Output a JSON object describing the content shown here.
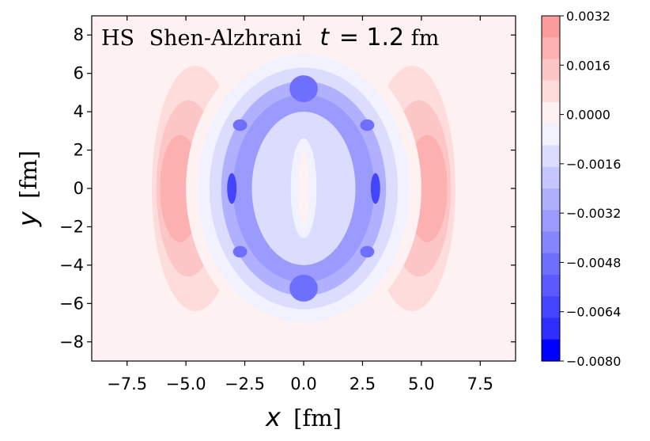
{
  "chart_data": {
    "type": "contour",
    "title_parts": {
      "model": "HS",
      "eos": "Shen-Alzhrani",
      "time_var": "t",
      "time_value": "= 1.2",
      "time_unit": "fm"
    },
    "xlabel": {
      "var": "x",
      "unit": "[fm]"
    },
    "ylabel": {
      "var": "y",
      "unit": "[fm]"
    },
    "xlim": [
      -9,
      9
    ],
    "ylim": [
      -9,
      9
    ],
    "xticks": [
      -7.5,
      -5.0,
      -2.5,
      0.0,
      2.5,
      5.0,
      7.5
    ],
    "xtick_labels": [
      "−7.5",
      "−5.0",
      "−2.5",
      "0.0",
      "2.5",
      "5.0",
      "7.5"
    ],
    "yticks": [
      -8,
      -6,
      -4,
      -2,
      0,
      2,
      4,
      6,
      8
    ],
    "ytick_labels": [
      "−8",
      "−6",
      "−4",
      "−2",
      "0",
      "2",
      "4",
      "6",
      "8"
    ],
    "colorbar": {
      "range": [
        -0.008,
        0.0032
      ],
      "ticks": [
        0.0032,
        0.0016,
        0.0,
        -0.0016,
        -0.0032,
        -0.0048,
        -0.0064,
        -0.008
      ],
      "tick_labels": [
        "0.0032",
        "0.0016",
        "0.0000",
        "−0.0016",
        "−0.0032",
        "−0.0048",
        "−0.0064",
        "−0.0080"
      ],
      "level_colors": [
        "#fc9b9b",
        "#fdb0b0",
        "#fdc6c6",
        "#fedcdc",
        "#fef1f1",
        "#f2f2fe",
        "#dcdcfe",
        "#c6c6fe",
        "#b0b0fe",
        "#9b9bfe",
        "#8585fe",
        "#6f6ffe",
        "#5a5afe",
        "#4444fe",
        "#2e2efe",
        "#0000ff"
      ]
    },
    "background_level": 0.0,
    "regions": [
      {
        "level": 0.0008,
        "cx": -4.6,
        "cy": 0,
        "rx": 1.85,
        "ry": 6.4
      },
      {
        "level": 0.0008,
        "cx": 4.6,
        "cy": 0,
        "rx": 1.85,
        "ry": 6.4
      },
      {
        "level": 0.0016,
        "cx": -4.9,
        "cy": 0,
        "rx": 1.35,
        "ry": 4.6
      },
      {
        "level": 0.0016,
        "cx": 4.9,
        "cy": 0,
        "rx": 1.35,
        "ry": 4.6
      },
      {
        "level": 0.0024,
        "cx": -5.25,
        "cy": 0,
        "rx": 0.85,
        "ry": 2.8
      },
      {
        "level": 0.0024,
        "cx": 5.25,
        "cy": 0,
        "rx": 0.85,
        "ry": 2.8
      },
      {
        "level": 0.0,
        "cx": 0,
        "cy": 0,
        "rx": 5.0,
        "ry": 7.6
      },
      {
        "level": -0.0008,
        "cx": 0,
        "cy": 0,
        "rx": 4.5,
        "ry": 7.0
      },
      {
        "level": -0.0016,
        "cx": 0,
        "cy": 0,
        "rx": 4.0,
        "ry": 6.3
      },
      {
        "level": -0.0024,
        "cx": 0,
        "cy": 0,
        "rx": 3.5,
        "ry": 5.6
      },
      {
        "level": -0.0032,
        "cx": 0,
        "cy": 0,
        "rx": 3.0,
        "ry": 4.9
      },
      {
        "level": -0.0016,
        "cx": 0,
        "cy": 0,
        "rx": 2.2,
        "ry": 4.0
      },
      {
        "level": -0.0008,
        "cx": 0,
        "cy": 0,
        "rx": 0.55,
        "ry": 2.6
      },
      {
        "level": 0.0,
        "cx": 0,
        "cy": 0,
        "rx": 0.22,
        "ry": 2.0
      },
      {
        "level": -0.0048,
        "cx": 0,
        "cy": 5.2,
        "rx": 0.6,
        "ry": 0.7
      },
      {
        "level": -0.0048,
        "cx": 0,
        "cy": -5.2,
        "rx": 0.6,
        "ry": 0.7
      },
      {
        "level": -0.0064,
        "cx": -3.05,
        "cy": 0,
        "rx": 0.2,
        "ry": 0.8
      },
      {
        "level": -0.0064,
        "cx": 3.05,
        "cy": 0,
        "rx": 0.2,
        "ry": 0.8
      },
      {
        "level": -0.0048,
        "cx": -2.7,
        "cy": 3.3,
        "rx": 0.3,
        "ry": 0.3
      },
      {
        "level": -0.0048,
        "cx": 2.7,
        "cy": 3.3,
        "rx": 0.3,
        "ry": 0.3
      },
      {
        "level": -0.0048,
        "cx": -2.7,
        "cy": -3.3,
        "rx": 0.3,
        "ry": 0.3
      },
      {
        "level": -0.0048,
        "cx": 2.7,
        "cy": -3.3,
        "rx": 0.3,
        "ry": 0.3
      }
    ]
  }
}
